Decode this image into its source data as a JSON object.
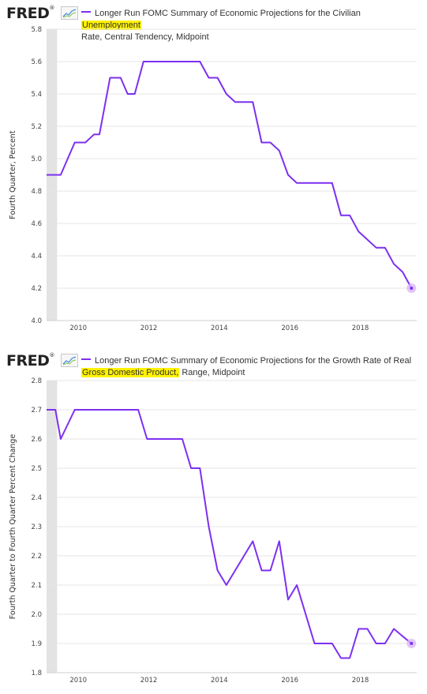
{
  "brand": {
    "logo_text": "FRED",
    "logo_icon": "fred-chart-icon"
  },
  "colors": {
    "series": "#7d2ff0",
    "recession": "#e3e3e3",
    "grid": "#e6e6e6",
    "highlight": "#fff200",
    "last_point_halo": "#d9b8f7"
  },
  "charts": [
    {
      "legend": {
        "before": "Longer Run FOMC Summary of Economic Projections for the Civilian",
        "highlight": "Unemployment",
        "after": "Rate, Central Tendency, Midpoint"
      },
      "ylabel": "Fourth Quarter, Percent"
    },
    {
      "legend": {
        "before": "Longer Run FOMC Summary of Economic Projections for the Growth Rate of Real",
        "highlight": "Gross Domestic Product,",
        "after": "Range, Midpoint"
      },
      "ylabel": "Fourth Quarter to Fourth Quarter Percent Change"
    }
  ],
  "chart_data": [
    {
      "type": "line",
      "title": "Longer Run FOMC Summary of Economic Projections for the Civilian Unemployment Rate, Central Tendency, Midpoint",
      "ylabel": "Fourth Quarter, Percent",
      "xlabel": "",
      "xlim": [
        2009.1,
        2019.6
      ],
      "ylim": [
        4.0,
        5.8
      ],
      "yticks": [
        "4.0",
        "4.2",
        "4.4",
        "4.6",
        "4.8",
        "5.0",
        "5.2",
        "5.4",
        "5.6",
        "5.8"
      ],
      "xticks": [
        "2010",
        "2012",
        "2014",
        "2016",
        "2018"
      ],
      "grid": true,
      "recession_band": [
        2009.1,
        2009.4
      ],
      "x": [
        2009.1,
        2009.5,
        2009.9,
        2010.2,
        2010.45,
        2010.6,
        2010.9,
        2011.2,
        2011.4,
        2011.6,
        2011.85,
        2012.2,
        2012.45,
        2012.7,
        2012.95,
        2013.2,
        2013.45,
        2013.7,
        2013.95,
        2014.2,
        2014.45,
        2014.7,
        2014.95,
        2015.2,
        2015.45,
        2015.7,
        2015.95,
        2016.2,
        2016.45,
        2016.7,
        2016.95,
        2017.2,
        2017.45,
        2017.7,
        2017.95,
        2018.2,
        2018.45,
        2018.7,
        2018.95,
        2019.2,
        2019.45
      ],
      "series": [
        {
          "values": [
            4.9,
            4.9,
            5.1,
            5.1,
            5.15,
            5.15,
            5.5,
            5.5,
            5.4,
            5.4,
            5.6,
            5.6,
            5.6,
            5.6,
            5.6,
            5.6,
            5.6,
            5.5,
            5.5,
            5.4,
            5.35,
            5.35,
            5.35,
            5.1,
            5.1,
            5.05,
            4.9,
            4.85,
            4.85,
            4.85,
            4.85,
            4.85,
            4.65,
            4.65,
            4.55,
            4.5,
            4.45,
            4.45,
            4.35,
            4.3,
            4.2
          ]
        }
      ]
    },
    {
      "type": "line",
      "title": "Longer Run FOMC Summary of Economic Projections for the Growth Rate of Real Gross Domestic Product, Range, Midpoint",
      "ylabel": "Fourth Quarter to Fourth Quarter Percent Change",
      "xlabel": "",
      "xlim": [
        2009.1,
        2019.6
      ],
      "ylim": [
        1.8,
        2.8
      ],
      "yticks": [
        "1.8",
        "1.9",
        "2.0",
        "2.1",
        "2.2",
        "2.3",
        "2.4",
        "2.5",
        "2.6",
        "2.7",
        "2.8"
      ],
      "xticks": [
        "2010",
        "2012",
        "2014",
        "2016",
        "2018"
      ],
      "grid": true,
      "recession_band": [
        2009.1,
        2009.4
      ],
      "x": [
        2009.1,
        2009.35,
        2009.5,
        2009.9,
        2010.2,
        2010.45,
        2010.7,
        2010.95,
        2011.2,
        2011.45,
        2011.7,
        2011.95,
        2012.2,
        2012.45,
        2012.7,
        2012.95,
        2013.2,
        2013.45,
        2013.7,
        2013.95,
        2014.2,
        2014.95,
        2015.2,
        2015.45,
        2015.7,
        2015.95,
        2016.2,
        2016.45,
        2016.7,
        2016.95,
        2017.2,
        2017.45,
        2017.7,
        2017.95,
        2018.2,
        2018.45,
        2018.7,
        2018.95,
        2019.2,
        2019.45
      ],
      "series": [
        {
          "values": [
            2.7,
            2.7,
            2.6,
            2.7,
            2.7,
            2.7,
            2.7,
            2.7,
            2.7,
            2.7,
            2.7,
            2.6,
            2.6,
            2.6,
            2.6,
            2.6,
            2.5,
            2.5,
            2.3,
            2.15,
            2.1,
            2.25,
            2.15,
            2.15,
            2.25,
            2.05,
            2.1,
            2.0,
            1.9,
            1.9,
            1.9,
            1.85,
            1.85,
            1.95,
            1.95,
            1.9,
            1.9,
            1.95,
            1.925,
            1.9
          ]
        }
      ]
    }
  ]
}
